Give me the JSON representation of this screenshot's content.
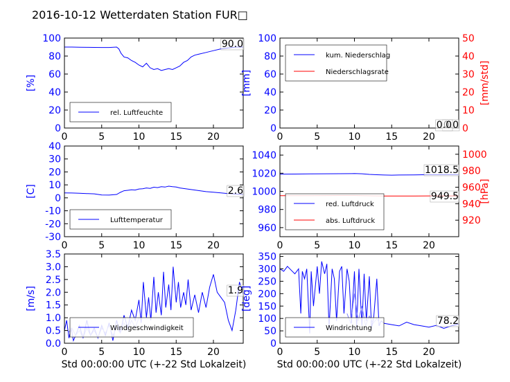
{
  "title": "2016-10-12 Wetterdaten Station FUR□",
  "colors": {
    "left_axis": "#0000ff",
    "right_axis": "#ff0000",
    "series_blue": "#0000ff",
    "series_red": "#ff0000",
    "series_light": "#8080ff"
  },
  "chart_data": [
    {
      "id": "humidity",
      "type": "line",
      "ylabel": "[%]",
      "xlim": [
        0,
        24
      ],
      "ylim": [
        0,
        100
      ],
      "xticks": [
        0,
        5,
        10,
        15,
        20
      ],
      "yticks": [
        0,
        20,
        40,
        60,
        80,
        100
      ],
      "legend_position": "bottom-left",
      "current_value": "90.0",
      "series": [
        {
          "name": "rel. Luftfeuchte",
          "color": "#0000ff",
          "x": [
            0,
            1,
            2,
            3,
            4,
            5,
            6,
            7,
            7.3,
            7.6,
            8,
            8.5,
            9,
            9.5,
            10,
            10.5,
            11,
            11.5,
            12,
            12.5,
            13,
            13.5,
            14,
            14.5,
            15,
            15.5,
            16,
            16.5,
            17,
            17.5,
            18,
            19,
            20,
            21,
            22,
            23,
            24
          ],
          "y": [
            90,
            90,
            89.8,
            89.7,
            89.6,
            89.5,
            89.5,
            90,
            88,
            83,
            79,
            78,
            75,
            73,
            70,
            68,
            72,
            67,
            65,
            66,
            64,
            65,
            66,
            65,
            67,
            69,
            73,
            75,
            79,
            81,
            82,
            84,
            86,
            88,
            89,
            90,
            90
          ]
        }
      ]
    },
    {
      "id": "precip",
      "type": "line",
      "ylabel": "[mm]",
      "ylabel_right": "[mm/std]",
      "xlim": [
        0,
        24
      ],
      "ylim": [
        0,
        100
      ],
      "ylim_right": [
        0,
        50
      ],
      "xticks": [
        0,
        5,
        10,
        15,
        20
      ],
      "yticks": [
        0,
        20,
        40,
        60,
        80,
        100
      ],
      "yticks_right": [
        0,
        10,
        20,
        30,
        40,
        50
      ],
      "legend_position": "top-left",
      "current_values": [
        "0.0",
        "0.0"
      ],
      "series": [
        {
          "name": "kum. Niederschlag",
          "color": "#0000ff",
          "axis": "left",
          "x": [
            0,
            24
          ],
          "y": [
            0,
            0
          ]
        },
        {
          "name": "Niederschlagsrate",
          "color": "#ff0000",
          "axis": "right",
          "x": [
            0,
            24
          ],
          "y": [
            0,
            0
          ]
        }
      ]
    },
    {
      "id": "temperature",
      "type": "line",
      "ylabel": "[C]",
      "xlim": [
        0,
        24
      ],
      "ylim": [
        -30,
        40
      ],
      "xticks": [
        0,
        5,
        10,
        15,
        20
      ],
      "yticks": [
        -30,
        -20,
        -10,
        0,
        10,
        20,
        30,
        40
      ],
      "legend_position": "bottom-left",
      "current_value": "2.6",
      "series": [
        {
          "name": "Lufttemperatur",
          "color": "#0000ff",
          "x": [
            0,
            1,
            2,
            3,
            4,
            5,
            6,
            7,
            7.5,
            8,
            8.5,
            9,
            9.5,
            10,
            10.5,
            11,
            11.5,
            12,
            12.5,
            13,
            13.5,
            14,
            14.5,
            15,
            15.5,
            16,
            17,
            18,
            19,
            20,
            21,
            22,
            23,
            24
          ],
          "y": [
            3.8,
            3.7,
            3.5,
            3.3,
            3.1,
            2.2,
            2.1,
            2.6,
            4.2,
            5.5,
            5.8,
            6.2,
            6.0,
            6.8,
            7.0,
            7.6,
            7.3,
            8.2,
            7.9,
            8.6,
            8.3,
            9.0,
            8.6,
            8.3,
            7.6,
            7.2,
            6.4,
            5.6,
            4.8,
            4.3,
            3.8,
            3.3,
            2.9,
            2.6
          ]
        }
      ]
    },
    {
      "id": "pressure",
      "type": "line",
      "ylabel_right": "[hPa]",
      "xlim": [
        0,
        24
      ],
      "ylim": [
        950,
        1050
      ],
      "ylim_right": [
        900,
        1010
      ],
      "xticks": [
        0,
        5,
        10,
        15,
        20
      ],
      "yticks": [
        960,
        980,
        1000,
        1020,
        1040
      ],
      "yticks_right": [
        920,
        940,
        960,
        980,
        1000
      ],
      "legend_position": "bottom-left",
      "current_values": [
        "1018.5",
        "949.5"
      ],
      "series": [
        {
          "name": "red. Luftdruck",
          "color": "#0000ff",
          "axis": "left",
          "x": [
            0,
            2,
            4,
            6,
            8,
            10,
            11,
            12,
            13,
            14,
            15,
            16,
            18,
            20,
            22,
            24
          ],
          "y": [
            1019.0,
            1019.1,
            1019.3,
            1019.4,
            1019.5,
            1019.6,
            1019.4,
            1018.7,
            1018.3,
            1018.0,
            1017.9,
            1018.0,
            1018.2,
            1018.4,
            1018.5,
            1018.5
          ]
        },
        {
          "name": "abs. Luftdruck",
          "color": "#ff0000",
          "axis": "right",
          "x": [
            0,
            2,
            4,
            6,
            8,
            10,
            12,
            14,
            16,
            18,
            20,
            22,
            24
          ],
          "y": [
            949.7,
            949.8,
            949.8,
            949.9,
            950.0,
            950.0,
            949.6,
            949.3,
            949.3,
            949.4,
            949.5,
            949.5,
            949.5
          ]
        }
      ]
    },
    {
      "id": "wind_speed",
      "type": "line",
      "ylabel": "[m/s]",
      "xlim": [
        0,
        24
      ],
      "ylim": [
        0,
        3.5
      ],
      "xticks": [
        0,
        5,
        10,
        15,
        20
      ],
      "yticks": [
        0.0,
        0.5,
        1.0,
        1.5,
        2.0,
        2.5,
        3.0,
        3.5
      ],
      "legend_position": "bottom-left",
      "current_value": "1.9",
      "xlabel": "Std 00:00:00 UTC (+-22 Std Lokalzeit)",
      "series": [
        {
          "name": "Windgeschwindigkeit",
          "color": "#0000ff",
          "x": [
            0,
            0.3,
            0.6,
            0.9,
            1.2,
            1.5,
            2,
            2.5,
            3,
            3.5,
            4,
            4.5,
            5,
            5.5,
            6,
            6.5,
            7,
            7.5,
            8,
            8.5,
            9,
            9.5,
            10,
            10.3,
            10.6,
            11,
            11.3,
            11.6,
            12,
            12.3,
            12.6,
            13,
            13.3,
            13.6,
            14,
            14.3,
            14.6,
            15,
            15.3,
            15.6,
            16,
            16.3,
            16.6,
            17,
            17.5,
            18,
            18.5,
            19,
            19.5,
            20,
            20.5,
            21,
            21.5,
            22,
            22.5,
            23,
            23.5,
            24
          ],
          "y": [
            0.5,
            0.9,
            0.2,
            0.6,
            0.1,
            0.3,
            0.7,
            0.2,
            0.9,
            0.3,
            0.6,
            0.2,
            0.7,
            0.3,
            0.8,
            0.1,
            0.9,
            0.4,
            1.1,
            0.6,
            1.3,
            0.9,
            1.7,
            0.8,
            2.4,
            1.0,
            1.8,
            0.9,
            2.6,
            1.2,
            2.0,
            1.1,
            2.8,
            1.4,
            2.3,
            1.3,
            3.0,
            1.6,
            2.4,
            1.4,
            2.0,
            1.5,
            2.5,
            1.3,
            1.9,
            1.2,
            2.0,
            1.4,
            2.2,
            2.7,
            2.0,
            1.8,
            1.6,
            0.9,
            0.5,
            1.3,
            2.4,
            1.9
          ]
        },
        {
          "name": "",
          "color": "#8080ff",
          "x": [
            0.5,
            1,
            1.5,
            2,
            2.5,
            3,
            3.5,
            4,
            4.5,
            5,
            5.5,
            6,
            6.5,
            7,
            7.5,
            8,
            8.5,
            9,
            9.5,
            10
          ],
          "y": [
            0.4,
            0.6,
            0.3,
            0.5,
            0.2,
            0.6,
            0.3,
            0.5,
            0.2,
            0.6,
            0.4,
            0.7,
            0.3,
            0.6,
            0.4,
            0.8,
            0.5,
            0.9,
            0.6,
            1.0
          ]
        }
      ]
    },
    {
      "id": "wind_dir",
      "type": "line",
      "ylabel": "[deg]",
      "xlim": [
        0,
        24
      ],
      "ylim": [
        0,
        360
      ],
      "xticks": [
        0,
        5,
        10,
        15,
        20
      ],
      "yticks": [
        0,
        50,
        100,
        150,
        200,
        250,
        300,
        350
      ],
      "legend_position": "bottom-left",
      "current_value": "78.2",
      "xlabel": "Std 00:00:00 UTC (+-22 Std Lokalzeit)",
      "series": [
        {
          "name": "Windrichtung",
          "color": "#0000ff",
          "x": [
            0,
            0.5,
            1,
            1.5,
            2,
            2.5,
            2.8,
            3,
            3.3,
            3.6,
            4,
            4.2,
            4.5,
            5,
            5.3,
            5.6,
            6,
            6.3,
            6.6,
            7,
            7.3,
            7.6,
            8,
            8.3,
            8.6,
            9,
            9.3,
            9.6,
            10,
            10.3,
            10.6,
            11,
            11.3,
            11.6,
            12,
            12.3,
            12.6,
            13,
            13.3,
            13.6,
            14,
            15,
            16,
            17,
            18,
            19,
            20,
            21,
            22,
            23,
            24
          ],
          "y": [
            300,
            290,
            310,
            295,
            280,
            300,
            120,
            290,
            260,
            300,
            40,
            290,
            150,
            310,
            200,
            330,
            280,
            320,
            60,
            300,
            260,
            90,
            290,
            310,
            120,
            300,
            250,
            80,
            290,
            60,
            300,
            70,
            280,
            90,
            270,
            60,
            110,
            260,
            70,
            90,
            80,
            75,
            70,
            85,
            75,
            70,
            65,
            72,
            60,
            70,
            78
          ]
        },
        {
          "name": "",
          "color": "#8080ff",
          "x": [
            9,
            9.5,
            10,
            10.5,
            11,
            11.5,
            12,
            12.5,
            13,
            13.5
          ],
          "y": [
            120,
            80,
            200,
            90,
            150,
            70,
            110,
            80,
            100,
            75
          ]
        }
      ]
    }
  ]
}
